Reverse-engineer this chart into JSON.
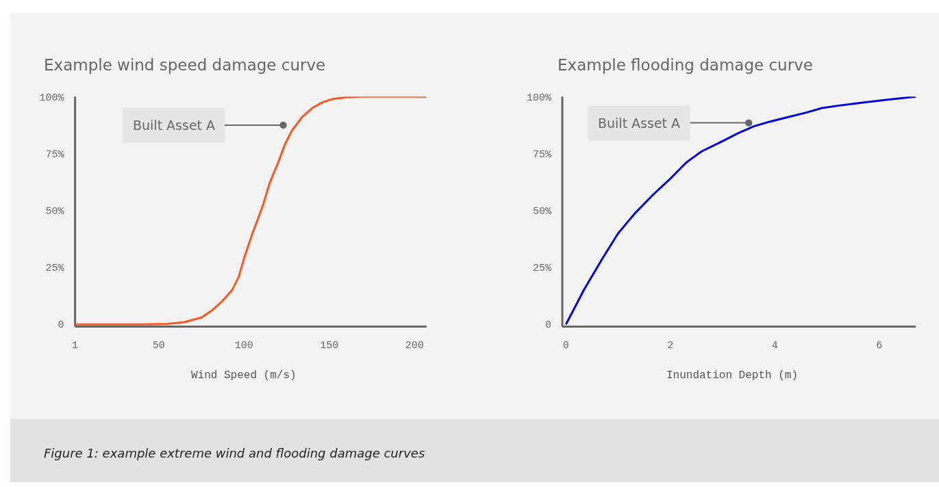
{
  "chart_data": [
    {
      "type": "line",
      "title": "Example wind speed damage curve",
      "xlabel": "Wind Speed (m/s)",
      "x": [
        1,
        20,
        40,
        55,
        65,
        75,
        81,
        87,
        93,
        97,
        100,
        105,
        111,
        115,
        120,
        124,
        128,
        134,
        140,
        146,
        152,
        160,
        168,
        185,
        207
      ],
      "series": [
        {
          "color": "#ff5722",
          "values": [
            0,
            0,
            0,
            0.2,
            1,
            3,
            6,
            10,
            15,
            21,
            29,
            40,
            52,
            62,
            71,
            79,
            85,
            91,
            95,
            97.5,
            99,
            99.7,
            100,
            100,
            100
          ]
        }
      ],
      "xlim": [
        1,
        207
      ],
      "xticks": [
        1,
        50,
        100,
        150,
        200
      ],
      "ylim": [
        -1,
        100
      ],
      "yticks": [
        0,
        {
          "value": 25,
          "label": "25%"
        },
        {
          "value": 50,
          "label": "50%"
        },
        {
          "value": 75,
          "label": "75%"
        },
        {
          "value": 100,
          "label": "100%"
        }
      ],
      "annotations": [
        {
          "text": "Built Asset A",
          "x": 123,
          "y": 87.5
        },
        "Figure 1: example extreme wind and flooding damage curves"
      ],
      "grid": false,
      "marker": "none",
      "line_style": "solid"
    },
    {
      "type": "line",
      "title": "Example flooding damage curve",
      "xlabel": "Inundation Depth (m)",
      "x": [
        0,
        0.34,
        0.7,
        1.0,
        1.33,
        1.67,
        2.0,
        2.3,
        2.6,
        2.96,
        3.3,
        3.6,
        3.9,
        4.25,
        4.6,
        4.9,
        5.2,
        5.55,
        6.1,
        6.7
      ],
      "series": [
        {
          "color": "#0000e0",
          "values": [
            0,
            15,
            29,
            40,
            49,
            57,
            64,
            71,
            76,
            80,
            84,
            87,
            89,
            91,
            93,
            95,
            96,
            97,
            98.5,
            100
          ]
        }
      ],
      "xlim": [
        -0.07,
        6.7
      ],
      "xticks": [
        0,
        2,
        4,
        6
      ],
      "ylim": [
        -1,
        100
      ],
      "yticks": [
        0,
        {
          "value": 25,
          "label": "25%"
        },
        {
          "value": 50,
          "label": "50%"
        },
        {
          "value": 75,
          "label": "75%"
        },
        {
          "value": 100,
          "label": "100%"
        }
      ],
      "annotations": [
        {
          "text": "Built Asset A",
          "x": 3.5,
          "y": 88.5
        }
      ],
      "grid": false,
      "marker": "none",
      "line_style": "solid"
    }
  ]
}
